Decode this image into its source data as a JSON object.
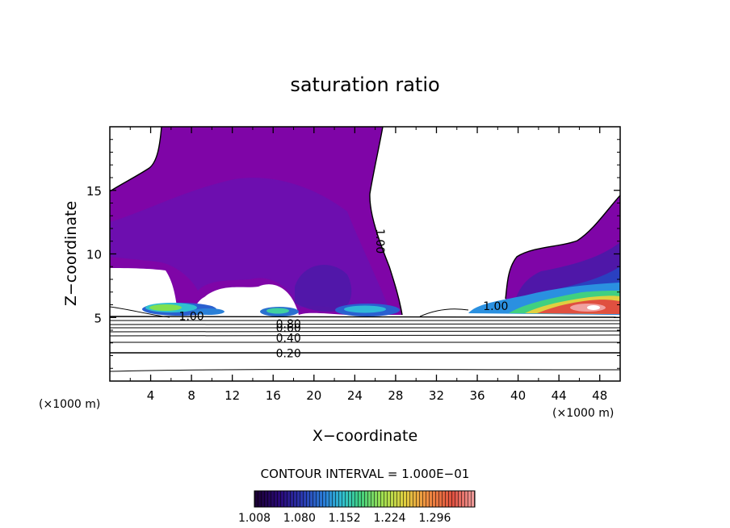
{
  "chart_data": {
    "type": "heatmap",
    "title": "saturation ratio",
    "xlabel": "X−coordinate",
    "ylabel": "Z−coordinate",
    "x_unit_left": "(×1000 m)",
    "x_unit_right": "(×1000 m)",
    "xlim": [
      0,
      50
    ],
    "ylim": [
      0,
      20
    ],
    "x_ticks": [
      4,
      8,
      12,
      16,
      20,
      24,
      28,
      32,
      36,
      40,
      44,
      48
    ],
    "y_ticks": [
      5,
      10,
      15
    ],
    "contour_interval_label": "CONTOUR INTERVAL = 1.000E−01",
    "colorbar": {
      "min": 1.008,
      "max": 1.36,
      "tick_labels": [
        "1.008",
        "1.080",
        "1.152",
        "1.224",
        "1.296"
      ],
      "colors": [
        "#1a0030",
        "#2a0a7a",
        "#2a3ab0",
        "#2a80d8",
        "#30c0d0",
        "#40d080",
        "#a0e050",
        "#e0d040",
        "#f09040",
        "#e05040",
        "#f0a0a0"
      ]
    },
    "contour_labels": [
      {
        "text": "1.00",
        "x": 8.0,
        "y": 5.1
      },
      {
        "text": "1.00",
        "x": 26.5,
        "y": 11.0
      },
      {
        "text": "1.00",
        "x": 37.8,
        "y": 5.9
      },
      {
        "text": "0.80",
        "x": 17.5,
        "y": 4.5
      },
      {
        "text": "0.60",
        "x": 17.5,
        "y": 4.2
      },
      {
        "text": "0.40",
        "x": 17.5,
        "y": 3.4
      },
      {
        "text": "0.20",
        "x": 17.5,
        "y": 2.2
      }
    ],
    "supersaturated_regions": [
      {
        "name": "upper-left-plume",
        "level": 1.04,
        "x_range": [
          0,
          29.5
        ],
        "z_range": [
          5.1,
          20
        ]
      },
      {
        "name": "right-plume",
        "level": 1.05,
        "x_range": [
          35,
          50
        ],
        "z_range": [
          5.0,
          14.5
        ]
      },
      {
        "name": "cloud-8km",
        "level": 1.18,
        "x_range": [
          3.2,
          11
        ],
        "z_range": [
          5.2,
          6.2
        ]
      },
      {
        "name": "cloud-16km",
        "level": 1.12,
        "x_range": [
          15,
          18.5
        ],
        "z_range": [
          5.2,
          5.8
        ]
      },
      {
        "name": "cloud-24km",
        "level": 1.12,
        "x_range": [
          22,
          28.5
        ],
        "z_range": [
          5.2,
          6.0
        ]
      },
      {
        "name": "cloud-44km",
        "level": 1.32,
        "x_range": [
          38,
          50
        ],
        "z_range": [
          5.2,
          7.5
        ]
      }
    ],
    "subsaturated_contours": [
      0.9,
      0.8,
      0.7,
      0.6,
      0.5,
      0.4,
      0.3,
      0.2,
      0.1
    ]
  }
}
